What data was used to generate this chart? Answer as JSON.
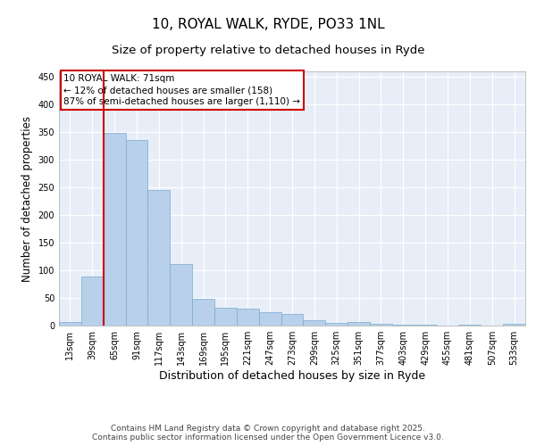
{
  "title": "10, ROYAL WALK, RYDE, PO33 1NL",
  "subtitle": "Size of property relative to detached houses in Ryde",
  "xlabel": "Distribution of detached houses by size in Ryde",
  "ylabel": "Number of detached properties",
  "bar_labels": [
    "13sqm",
    "39sqm",
    "65sqm",
    "91sqm",
    "117sqm",
    "143sqm",
    "169sqm",
    "195sqm",
    "221sqm",
    "247sqm",
    "273sqm",
    "299sqm",
    "325sqm",
    "351sqm",
    "377sqm",
    "403sqm",
    "429sqm",
    "455sqm",
    "481sqm",
    "507sqm",
    "533sqm"
  ],
  "bar_values": [
    6,
    88,
    349,
    336,
    246,
    112,
    49,
    32,
    31,
    25,
    21,
    10,
    5,
    7,
    4,
    2,
    1,
    0,
    1,
    0,
    4
  ],
  "bar_color": "#b8d0ea",
  "bar_edgecolor": "#7aaad0",
  "vline_x_index": 2,
  "vline_color": "#cc0000",
  "annotation_text": "10 ROYAL WALK: 71sqm\n← 12% of detached houses are smaller (158)\n87% of semi-detached houses are larger (1,110) →",
  "annotation_box_color": "white",
  "annotation_box_edgecolor": "#cc0000",
  "ylim": [
    0,
    460
  ],
  "yticks": [
    0,
    50,
    100,
    150,
    200,
    250,
    300,
    350,
    400,
    450
  ],
  "background_color": "#e8eef8",
  "grid_color": "white",
  "footnote": "Contains HM Land Registry data © Crown copyright and database right 2025.\nContains public sector information licensed under the Open Government Licence v3.0.",
  "title_fontsize": 11,
  "subtitle_fontsize": 9.5,
  "xlabel_fontsize": 9,
  "ylabel_fontsize": 8.5,
  "tick_fontsize": 7,
  "annotation_fontsize": 7.5,
  "footnote_fontsize": 6.5
}
